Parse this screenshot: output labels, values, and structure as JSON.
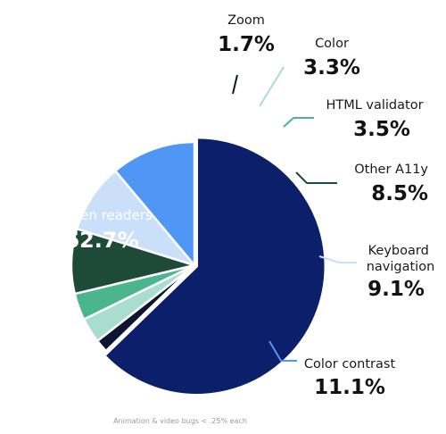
{
  "chart_data": {
    "type": "pie",
    "slices": [
      {
        "label": "Screen readers",
        "value": 62.7,
        "value_label": "62.7%",
        "color": "#0b1f6b",
        "exploded": true
      },
      {
        "label": "Zoom",
        "value": 1.7,
        "value_label": "1.7%",
        "color": "#0d1530"
      },
      {
        "label": "Color",
        "value": 3.3,
        "value_label": "3.3%",
        "color": "#a9ddd0"
      },
      {
        "label": "HTML validator",
        "value": 3.5,
        "value_label": "3.5%",
        "color": "#4bb58d"
      },
      {
        "label": "Other A11y",
        "value": 8.5,
        "value_label": "8.5%",
        "color": "#1e4a3a"
      },
      {
        "label": "Keyboard navigation",
        "value": 9.1,
        "value_label": "9.1%",
        "color": "#c9dffa"
      },
      {
        "label": "Color contrast",
        "value": 11.1,
        "value_label": "11.1%",
        "color": "#4f96f5"
      }
    ],
    "note": "Animation & video bugs < .25% each"
  }
}
